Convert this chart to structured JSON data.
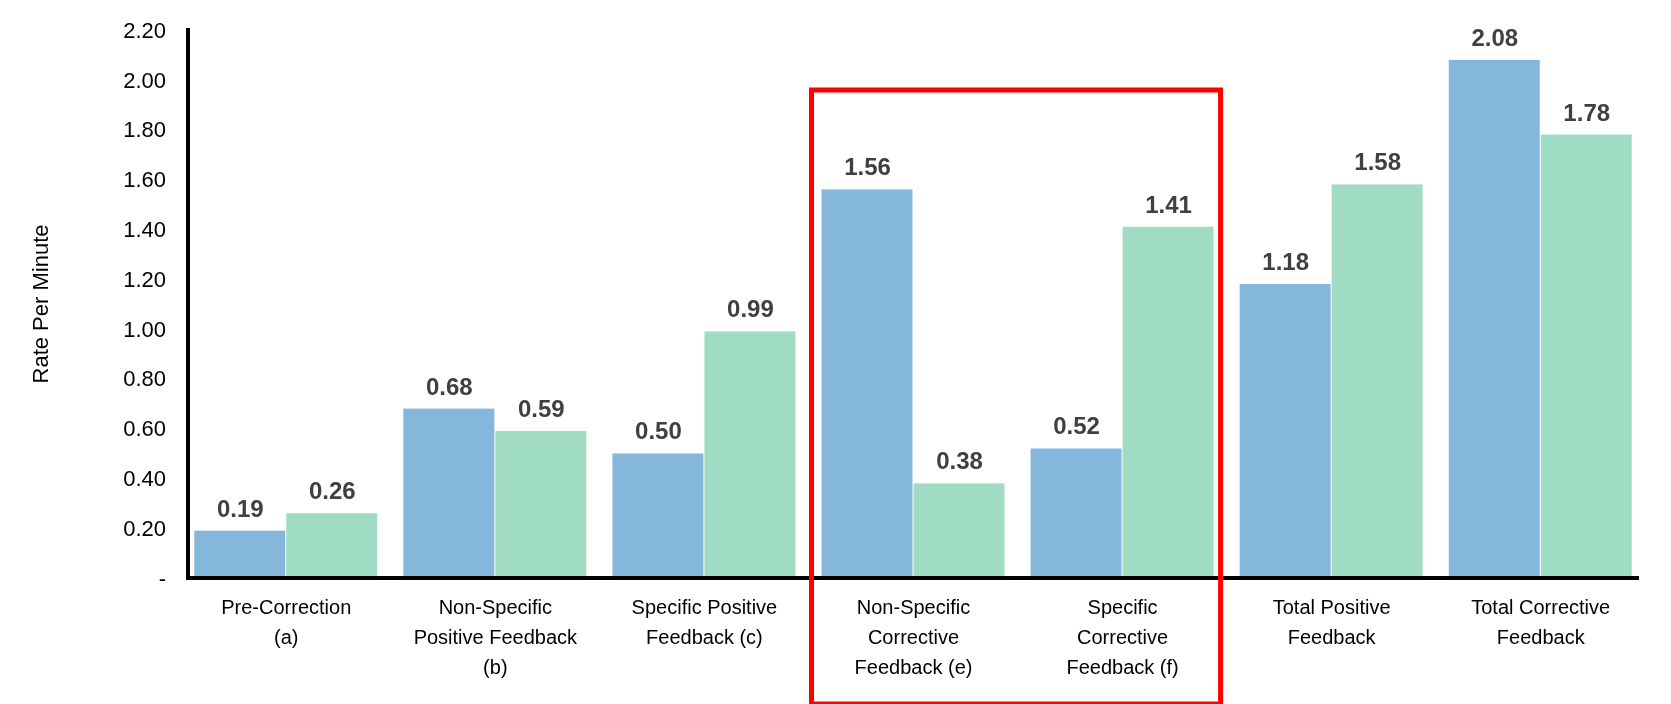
{
  "chart_data": {
    "type": "bar",
    "ylabel": "Rate Per Minute",
    "categories": [
      "Pre-Correction (a)",
      "Non-Specific Positive Feedback (b)",
      "Specific Positive Feedback (c)",
      "Non-Specific Corrective Feedback (e)",
      "Specific Corrective Feedback (f)",
      "Total Positive Feedback",
      "Total Corrective Feedback"
    ],
    "series": [
      {
        "color": "#85b6dc",
        "values": [
          0.19,
          0.68,
          0.5,
          1.56,
          0.52,
          1.18,
          2.08
        ],
        "value_labels": [
          "0.19",
          "0.68",
          "0.50",
          "1.56",
          "0.52",
          "1.18",
          "2.08"
        ]
      },
      {
        "color": "#a0dcc4",
        "values": [
          0.26,
          0.59,
          0.99,
          0.38,
          1.41,
          1.58,
          1.78
        ],
        "value_labels": [
          "0.26",
          "0.59",
          "0.99",
          "0.38",
          "1.41",
          "1.58",
          "1.78"
        ]
      }
    ],
    "ylim": [
      0,
      2.2
    ],
    "yticks": [
      {
        "value": 0,
        "label": "-"
      },
      {
        "value": 0.2,
        "label": "0.20"
      },
      {
        "value": 0.4,
        "label": "0.40"
      },
      {
        "value": 0.6,
        "label": "0.60"
      },
      {
        "value": 0.8,
        "label": "0.80"
      },
      {
        "value": 1,
        "label": "1.00"
      },
      {
        "value": 1.2,
        "label": "1.20"
      },
      {
        "value": 1.4,
        "label": "1.40"
      },
      {
        "value": 1.6,
        "label": "1.60"
      },
      {
        "value": 1.8,
        "label": "1.80"
      },
      {
        "value": 2,
        "label": "2.00"
      },
      {
        "value": 2.2,
        "label": "2.20"
      }
    ],
    "grid": false
  }
}
